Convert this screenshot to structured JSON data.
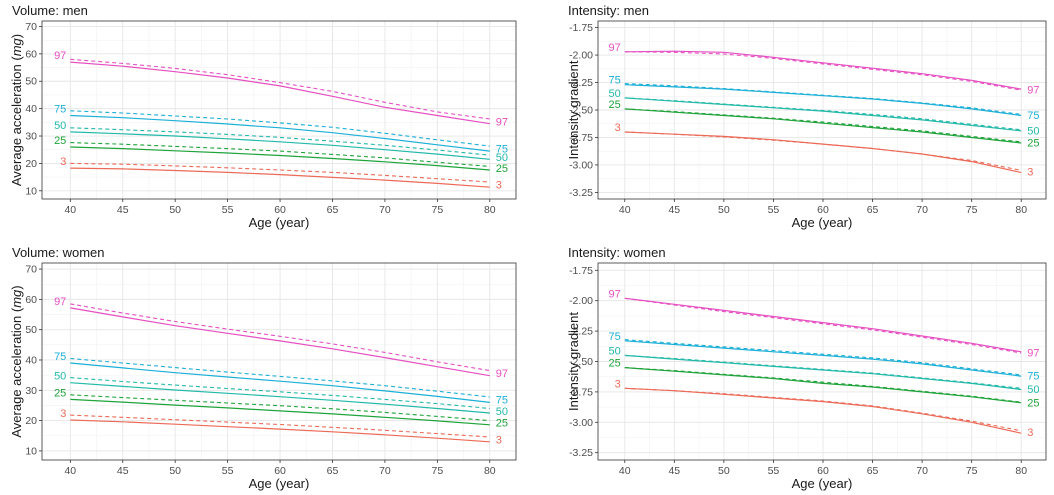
{
  "chart_data": [
    {
      "type": "line",
      "title": "Volume: men",
      "xlabel": "Age (year)",
      "ylabel_parts": [
        "Average acceleration (",
        "mg",
        ")"
      ],
      "xlim": [
        37.3,
        82.5
      ],
      "ylim": [
        7,
        72
      ],
      "xticks": [
        40,
        45,
        50,
        55,
        60,
        65,
        70,
        75,
        80
      ],
      "yticks": [
        10,
        20,
        30,
        40,
        50,
        60,
        70
      ],
      "ytick_labels": [
        "10",
        "20",
        "30",
        "40",
        "50",
        "60",
        "70"
      ],
      "x": [
        40,
        45,
        50,
        55,
        60,
        65,
        70,
        75,
        80
      ],
      "series": [
        {
          "label": "97",
          "color": "#E64FC2",
          "left_label": "97",
          "right_label": "97",
          "solid": [
            57,
            55.5,
            53.5,
            51.2,
            48.3,
            44.5,
            40.5,
            37.5,
            34.5
          ],
          "dashed": [
            58,
            56.5,
            54.7,
            52.4,
            49.5,
            46.3,
            42.3,
            38.8,
            36.2
          ]
        },
        {
          "label": "75",
          "color": "#1CAFD7",
          "left_label": "75",
          "right_label": "75",
          "solid": [
            37.5,
            36.7,
            35.6,
            34.4,
            33.0,
            31.2,
            29.1,
            26.8,
            24.5
          ],
          "dashed": [
            39.2,
            38.4,
            37.3,
            36.2,
            34.8,
            33.2,
            31.0,
            28.6,
            26.3
          ]
        },
        {
          "label": "50",
          "color": "#23B9A9",
          "left_label": "50",
          "right_label": "50",
          "solid": [
            31.5,
            30.8,
            30.0,
            29.0,
            27.9,
            26.6,
            25.0,
            23.4,
            21.5
          ],
          "dashed": [
            33.0,
            32.3,
            31.5,
            30.6,
            29.5,
            28.1,
            26.6,
            24.9,
            23.0
          ]
        },
        {
          "label": "25",
          "color": "#1FA33A",
          "left_label": "25",
          "right_label": "25",
          "solid": [
            26.0,
            25.4,
            24.6,
            23.8,
            22.9,
            21.8,
            20.6,
            19.2,
            17.6
          ],
          "dashed": [
            27.6,
            27.0,
            26.2,
            25.4,
            24.5,
            23.3,
            22.0,
            20.4,
            18.9
          ]
        },
        {
          "label": "3",
          "color": "#EC6A58",
          "left_label": "3",
          "right_label": "3",
          "solid": [
            18.3,
            18.0,
            17.4,
            16.7,
            15.9,
            14.9,
            13.9,
            12.7,
            11.3
          ],
          "dashed": [
            20.0,
            19.7,
            19.1,
            18.4,
            17.6,
            16.7,
            15.6,
            14.4,
            13.2
          ]
        }
      ]
    },
    {
      "type": "line",
      "title": "Intensity: men",
      "xlabel": "Age (year)",
      "ylabel": "Intensity gradient",
      "xlim": [
        37.3,
        82.5
      ],
      "ylim": [
        -3.31,
        -1.69
      ],
      "xticks": [
        40,
        45,
        50,
        55,
        60,
        65,
        70,
        75,
        80
      ],
      "yticks": [
        -1.75,
        -2.0,
        -2.25,
        -2.5,
        -2.75,
        -3.0,
        -3.25
      ],
      "ytick_labels": [
        "-1.75",
        "-2.00",
        "-2.25",
        "-2.50",
        "-2.75",
        "-3.00",
        "-3.25"
      ],
      "x": [
        40,
        45,
        50,
        55,
        60,
        65,
        70,
        75,
        80
      ],
      "series": [
        {
          "label": "97",
          "color": "#E64FC2",
          "left_label": "97",
          "right_label": "97",
          "solid": [
            -1.97,
            -1.965,
            -1.975,
            -2.02,
            -2.07,
            -2.12,
            -2.17,
            -2.23,
            -2.31
          ],
          "dashed": [
            -1.97,
            -1.975,
            -1.99,
            -2.03,
            -2.08,
            -2.13,
            -2.18,
            -2.24,
            -2.32
          ]
        },
        {
          "label": "75",
          "color": "#1CAFD7",
          "left_label": "75",
          "right_label": "75",
          "solid": [
            -2.27,
            -2.29,
            -2.31,
            -2.34,
            -2.37,
            -2.4,
            -2.44,
            -2.49,
            -2.55
          ],
          "dashed": [
            -2.26,
            -2.28,
            -2.305,
            -2.335,
            -2.365,
            -2.395,
            -2.435,
            -2.48,
            -2.54
          ]
        },
        {
          "label": "50",
          "color": "#23B9A9",
          "left_label": "50",
          "right_label": "50",
          "solid": [
            -2.39,
            -2.42,
            -2.45,
            -2.48,
            -2.51,
            -2.55,
            -2.59,
            -2.64,
            -2.69
          ],
          "dashed": [
            -2.39,
            -2.415,
            -2.445,
            -2.475,
            -2.505,
            -2.54,
            -2.58,
            -2.63,
            -2.68
          ]
        },
        {
          "label": "25",
          "color": "#1FA33A",
          "left_label": "25",
          "right_label": "25",
          "solid": [
            -2.49,
            -2.52,
            -2.55,
            -2.58,
            -2.62,
            -2.66,
            -2.7,
            -2.75,
            -2.8
          ],
          "dashed": [
            -2.49,
            -2.515,
            -2.545,
            -2.575,
            -2.61,
            -2.65,
            -2.69,
            -2.74,
            -2.79
          ]
        },
        {
          "label": "3",
          "color": "#EC6A58",
          "left_label": "3",
          "right_label": "3",
          "solid": [
            -2.7,
            -2.72,
            -2.74,
            -2.77,
            -2.81,
            -2.85,
            -2.9,
            -2.97,
            -3.07
          ],
          "dashed": [
            -2.7,
            -2.72,
            -2.745,
            -2.775,
            -2.81,
            -2.85,
            -2.9,
            -2.96,
            -3.05
          ]
        }
      ]
    },
    {
      "type": "line",
      "title": "Volume: women",
      "xlabel": "Age (year)",
      "ylabel_parts": [
        "Average acceleration (",
        "mg",
        ")"
      ],
      "xlim": [
        37.3,
        82.5
      ],
      "ylim": [
        7,
        72
      ],
      "xticks": [
        40,
        45,
        50,
        55,
        60,
        65,
        70,
        75,
        80
      ],
      "yticks": [
        10,
        20,
        30,
        40,
        50,
        60,
        70
      ],
      "ytick_labels": [
        "10",
        "20",
        "30",
        "40",
        "50",
        "60",
        "70"
      ],
      "x": [
        40,
        45,
        50,
        55,
        60,
        65,
        70,
        75,
        80
      ],
      "series": [
        {
          "label": "97",
          "color": "#E64FC2",
          "left_label": "97",
          "right_label": "97",
          "solid": [
            57.2,
            54.2,
            51.3,
            48.8,
            46.3,
            43.7,
            40.8,
            37.8,
            34.8
          ],
          "dashed": [
            58.5,
            55.5,
            52.7,
            50.2,
            47.8,
            45.3,
            42.5,
            39.4,
            36.5
          ]
        },
        {
          "label": "75",
          "color": "#1CAFD7",
          "left_label": "75",
          "right_label": "75",
          "solid": [
            39.0,
            37.4,
            35.8,
            34.4,
            33.0,
            31.5,
            29.8,
            28.0,
            26.0
          ],
          "dashed": [
            40.5,
            39.0,
            37.5,
            36.0,
            34.6,
            33.1,
            31.5,
            29.7,
            27.8
          ]
        },
        {
          "label": "50",
          "color": "#23B9A9",
          "left_label": "50",
          "right_label": "50",
          "solid": [
            32.5,
            31.3,
            30.1,
            29.0,
            27.9,
            26.7,
            25.4,
            24.0,
            22.5
          ],
          "dashed": [
            34.2,
            32.9,
            31.7,
            30.6,
            29.5,
            28.3,
            27.0,
            25.6,
            24.0
          ]
        },
        {
          "label": "25",
          "color": "#1FA33A",
          "left_label": "25",
          "right_label": "25",
          "solid": [
            27.0,
            26.1,
            25.1,
            24.2,
            23.2,
            22.2,
            21.1,
            19.9,
            18.6
          ],
          "dashed": [
            28.5,
            27.6,
            26.7,
            25.8,
            24.9,
            23.9,
            22.7,
            21.4,
            20.0
          ]
        },
        {
          "label": "3",
          "color": "#EC6A58",
          "left_label": "3",
          "right_label": "3",
          "solid": [
            20.2,
            19.6,
            18.8,
            18.0,
            17.2,
            16.3,
            15.3,
            14.2,
            13.0
          ],
          "dashed": [
            21.8,
            21.1,
            20.3,
            19.5,
            18.7,
            17.8,
            16.8,
            15.7,
            14.6
          ]
        }
      ]
    },
    {
      "type": "line",
      "title": "Intensity: women",
      "xlabel": "Age (year)",
      "ylabel": "Intensity gradient",
      "xlim": [
        37.3,
        82.5
      ],
      "ylim": [
        -3.31,
        -1.69
      ],
      "xticks": [
        40,
        45,
        50,
        55,
        60,
        65,
        70,
        75,
        80
      ],
      "yticks": [
        -1.75,
        -2.0,
        -2.25,
        -2.5,
        -2.75,
        -3.0,
        -3.25
      ],
      "ytick_labels": [
        "-1.75",
        "-2.00",
        "-2.25",
        "-2.50",
        "-2.75",
        "-3.00",
        "-3.25"
      ],
      "x": [
        40,
        45,
        50,
        55,
        60,
        65,
        70,
        75,
        80
      ],
      "series": [
        {
          "label": "97",
          "color": "#E64FC2",
          "left_label": "97",
          "right_label": "97",
          "solid": [
            -1.98,
            -2.03,
            -2.08,
            -2.13,
            -2.18,
            -2.23,
            -2.29,
            -2.35,
            -2.42
          ],
          "dashed": [
            -1.98,
            -2.035,
            -2.09,
            -2.14,
            -2.19,
            -2.24,
            -2.3,
            -2.36,
            -2.43
          ]
        },
        {
          "label": "75",
          "color": "#1CAFD7",
          "left_label": "75",
          "right_label": "75",
          "solid": [
            -2.33,
            -2.36,
            -2.39,
            -2.42,
            -2.45,
            -2.48,
            -2.52,
            -2.57,
            -2.62
          ],
          "dashed": [
            -2.32,
            -2.35,
            -2.38,
            -2.41,
            -2.44,
            -2.47,
            -2.51,
            -2.56,
            -2.61
          ]
        },
        {
          "label": "50",
          "color": "#23B9A9",
          "left_label": "50",
          "right_label": "50",
          "solid": [
            -2.45,
            -2.48,
            -2.51,
            -2.54,
            -2.57,
            -2.6,
            -2.64,
            -2.68,
            -2.73
          ],
          "dashed": [
            -2.45,
            -2.475,
            -2.505,
            -2.535,
            -2.565,
            -2.595,
            -2.635,
            -2.675,
            -2.72
          ]
        },
        {
          "label": "25",
          "color": "#1FA33A",
          "left_label": "25",
          "right_label": "25",
          "solid": [
            -2.55,
            -2.58,
            -2.61,
            -2.64,
            -2.68,
            -2.71,
            -2.75,
            -2.79,
            -2.84
          ],
          "dashed": [
            -2.55,
            -2.575,
            -2.605,
            -2.635,
            -2.67,
            -2.705,
            -2.745,
            -2.785,
            -2.835
          ]
        },
        {
          "label": "3",
          "color": "#EC6A58",
          "left_label": "3",
          "right_label": "3",
          "solid": [
            -2.72,
            -2.74,
            -2.77,
            -2.8,
            -2.83,
            -2.87,
            -2.93,
            -3.0,
            -3.09
          ],
          "dashed": [
            -2.72,
            -2.74,
            -2.765,
            -2.795,
            -2.825,
            -2.865,
            -2.925,
            -2.99,
            -3.07
          ]
        }
      ]
    }
  ]
}
